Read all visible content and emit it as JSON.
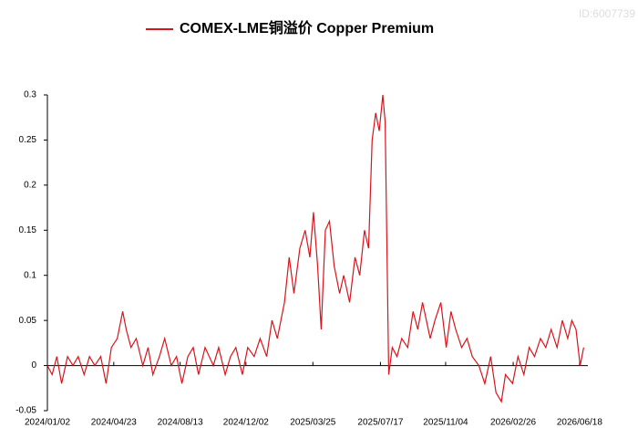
{
  "watermark": "ID:6007739",
  "chart_data": {
    "type": "line",
    "series": [
      {
        "name": "COMEX-LME铜溢价 Copper Premium",
        "color": "#d9141c",
        "x": [
          "2024/01/02",
          "2024/01/10",
          "2024/01/18",
          "2024/01/26",
          "2024/02/05",
          "2024/02/14",
          "2024/02/23",
          "2024/03/04",
          "2024/03/13",
          "2024/03/22",
          "2024/04/01",
          "2024/04/10",
          "2024/04/19",
          "2024/04/29",
          "2024/05/08",
          "2024/05/14",
          "2024/05/22",
          "2024/05/31",
          "2024/06/11",
          "2024/06/20",
          "2024/06/28",
          "2024/07/09",
          "2024/07/18",
          "2024/07/29",
          "2024/08/07",
          "2024/08/16",
          "2024/08/26",
          "2024/09/04",
          "2024/09/13",
          "2024/09/24",
          "2024/10/08",
          "2024/10/17",
          "2024/10/28",
          "2024/11/06",
          "2024/11/15",
          "2024/11/26",
          "2024/12/05",
          "2024/12/16",
          "2024/12/26",
          "2025/01/06",
          "2025/01/15",
          "2025/01/24",
          "2025/02/05",
          "2025/02/13",
          "2025/02/21",
          "2025/03/03",
          "2025/03/12",
          "2025/03/20",
          "2025/03/26",
          "2025/04/02",
          "2025/04/08",
          "2025/04/15",
          "2025/04/22",
          "2025/04/30",
          "2025/05/09",
          "2025/05/16",
          "2025/05/26",
          "2025/06/04",
          "2025/06/12",
          "2025/06/20",
          "2025/06/27",
          "2025/07/03",
          "2025/07/09",
          "2025/07/15",
          "2025/07/21",
          "2025/07/25",
          "2025/07/31",
          "2025/08/06",
          "2025/08/14",
          "2025/08/22",
          "2025/09/01",
          "2025/09/10",
          "2025/09/18",
          "2025/09/26",
          "2025/10/09",
          "2025/10/17",
          "2025/10/27",
          "2025/11/05",
          "2025/11/13",
          "2025/11/21",
          "2025/12/01",
          "2025/12/10",
          "2025/12/19",
          "2025/12/30",
          "2026/01/09",
          "2026/01/19",
          "2026/01/28",
          "2026/02/06",
          "2026/02/13",
          "2026/02/25",
          "2026/03/06",
          "2026/03/16",
          "2026/03/25",
          "2026/04/03",
          "2026/04/13",
          "2026/04/22",
          "2026/05/01",
          "2026/05/11",
          "2026/05/20",
          "2026/05/29",
          "2026/06/05",
          "2026/06/12",
          "2026/06/19",
          "2026/06/25"
        ],
        "values": [
          0,
          -0.01,
          0.01,
          -0.02,
          0.01,
          0,
          0.01,
          -0.01,
          0.01,
          0,
          0.01,
          -0.02,
          0.02,
          0.03,
          0.06,
          0.04,
          0.02,
          0.03,
          0,
          0.02,
          -0.01,
          0.01,
          0.03,
          0,
          0.01,
          -0.02,
          0.01,
          0.02,
          -0.01,
          0.02,
          0,
          0.02,
          -0.01,
          0.01,
          0.02,
          -0.01,
          0.02,
          0.01,
          0.03,
          0.01,
          0.05,
          0.03,
          0.07,
          0.12,
          0.08,
          0.13,
          0.15,
          0.12,
          0.17,
          0.11,
          0.04,
          0.15,
          0.16,
          0.11,
          0.08,
          0.1,
          0.07,
          0.12,
          0.1,
          0.15,
          0.13,
          0.25,
          0.28,
          0.26,
          0.3,
          0.27,
          -0.01,
          0.02,
          0.01,
          0.03,
          0.02,
          0.06,
          0.04,
          0.07,
          0.03,
          0.05,
          0.07,
          0.02,
          0.06,
          0.04,
          0.02,
          0.03,
          0.01,
          0,
          -0.02,
          0.01,
          -0.03,
          -0.04,
          -0.01,
          -0.02,
          0.01,
          -0.01,
          0.02,
          0.01,
          0.03,
          0.02,
          0.04,
          0.02,
          0.05,
          0.03,
          0.05,
          0.04,
          0,
          0.02
        ]
      }
    ],
    "xlim": [
      "2024/01/02",
      "2026/07/02"
    ],
    "xticks": [
      "2024/01/02",
      "2024/04/23",
      "2024/08/13",
      "2024/12/02",
      "2025/03/25",
      "2025/07/17",
      "2025/11/04",
      "2026/02/26",
      "2026/06/18"
    ],
    "ylim": [
      -0.05,
      0.3
    ],
    "yticks": [
      -0.05,
      0,
      0.05,
      0.1,
      0.15,
      0.2,
      0.25,
      0.3
    ],
    "grid": false,
    "legend": "top"
  }
}
